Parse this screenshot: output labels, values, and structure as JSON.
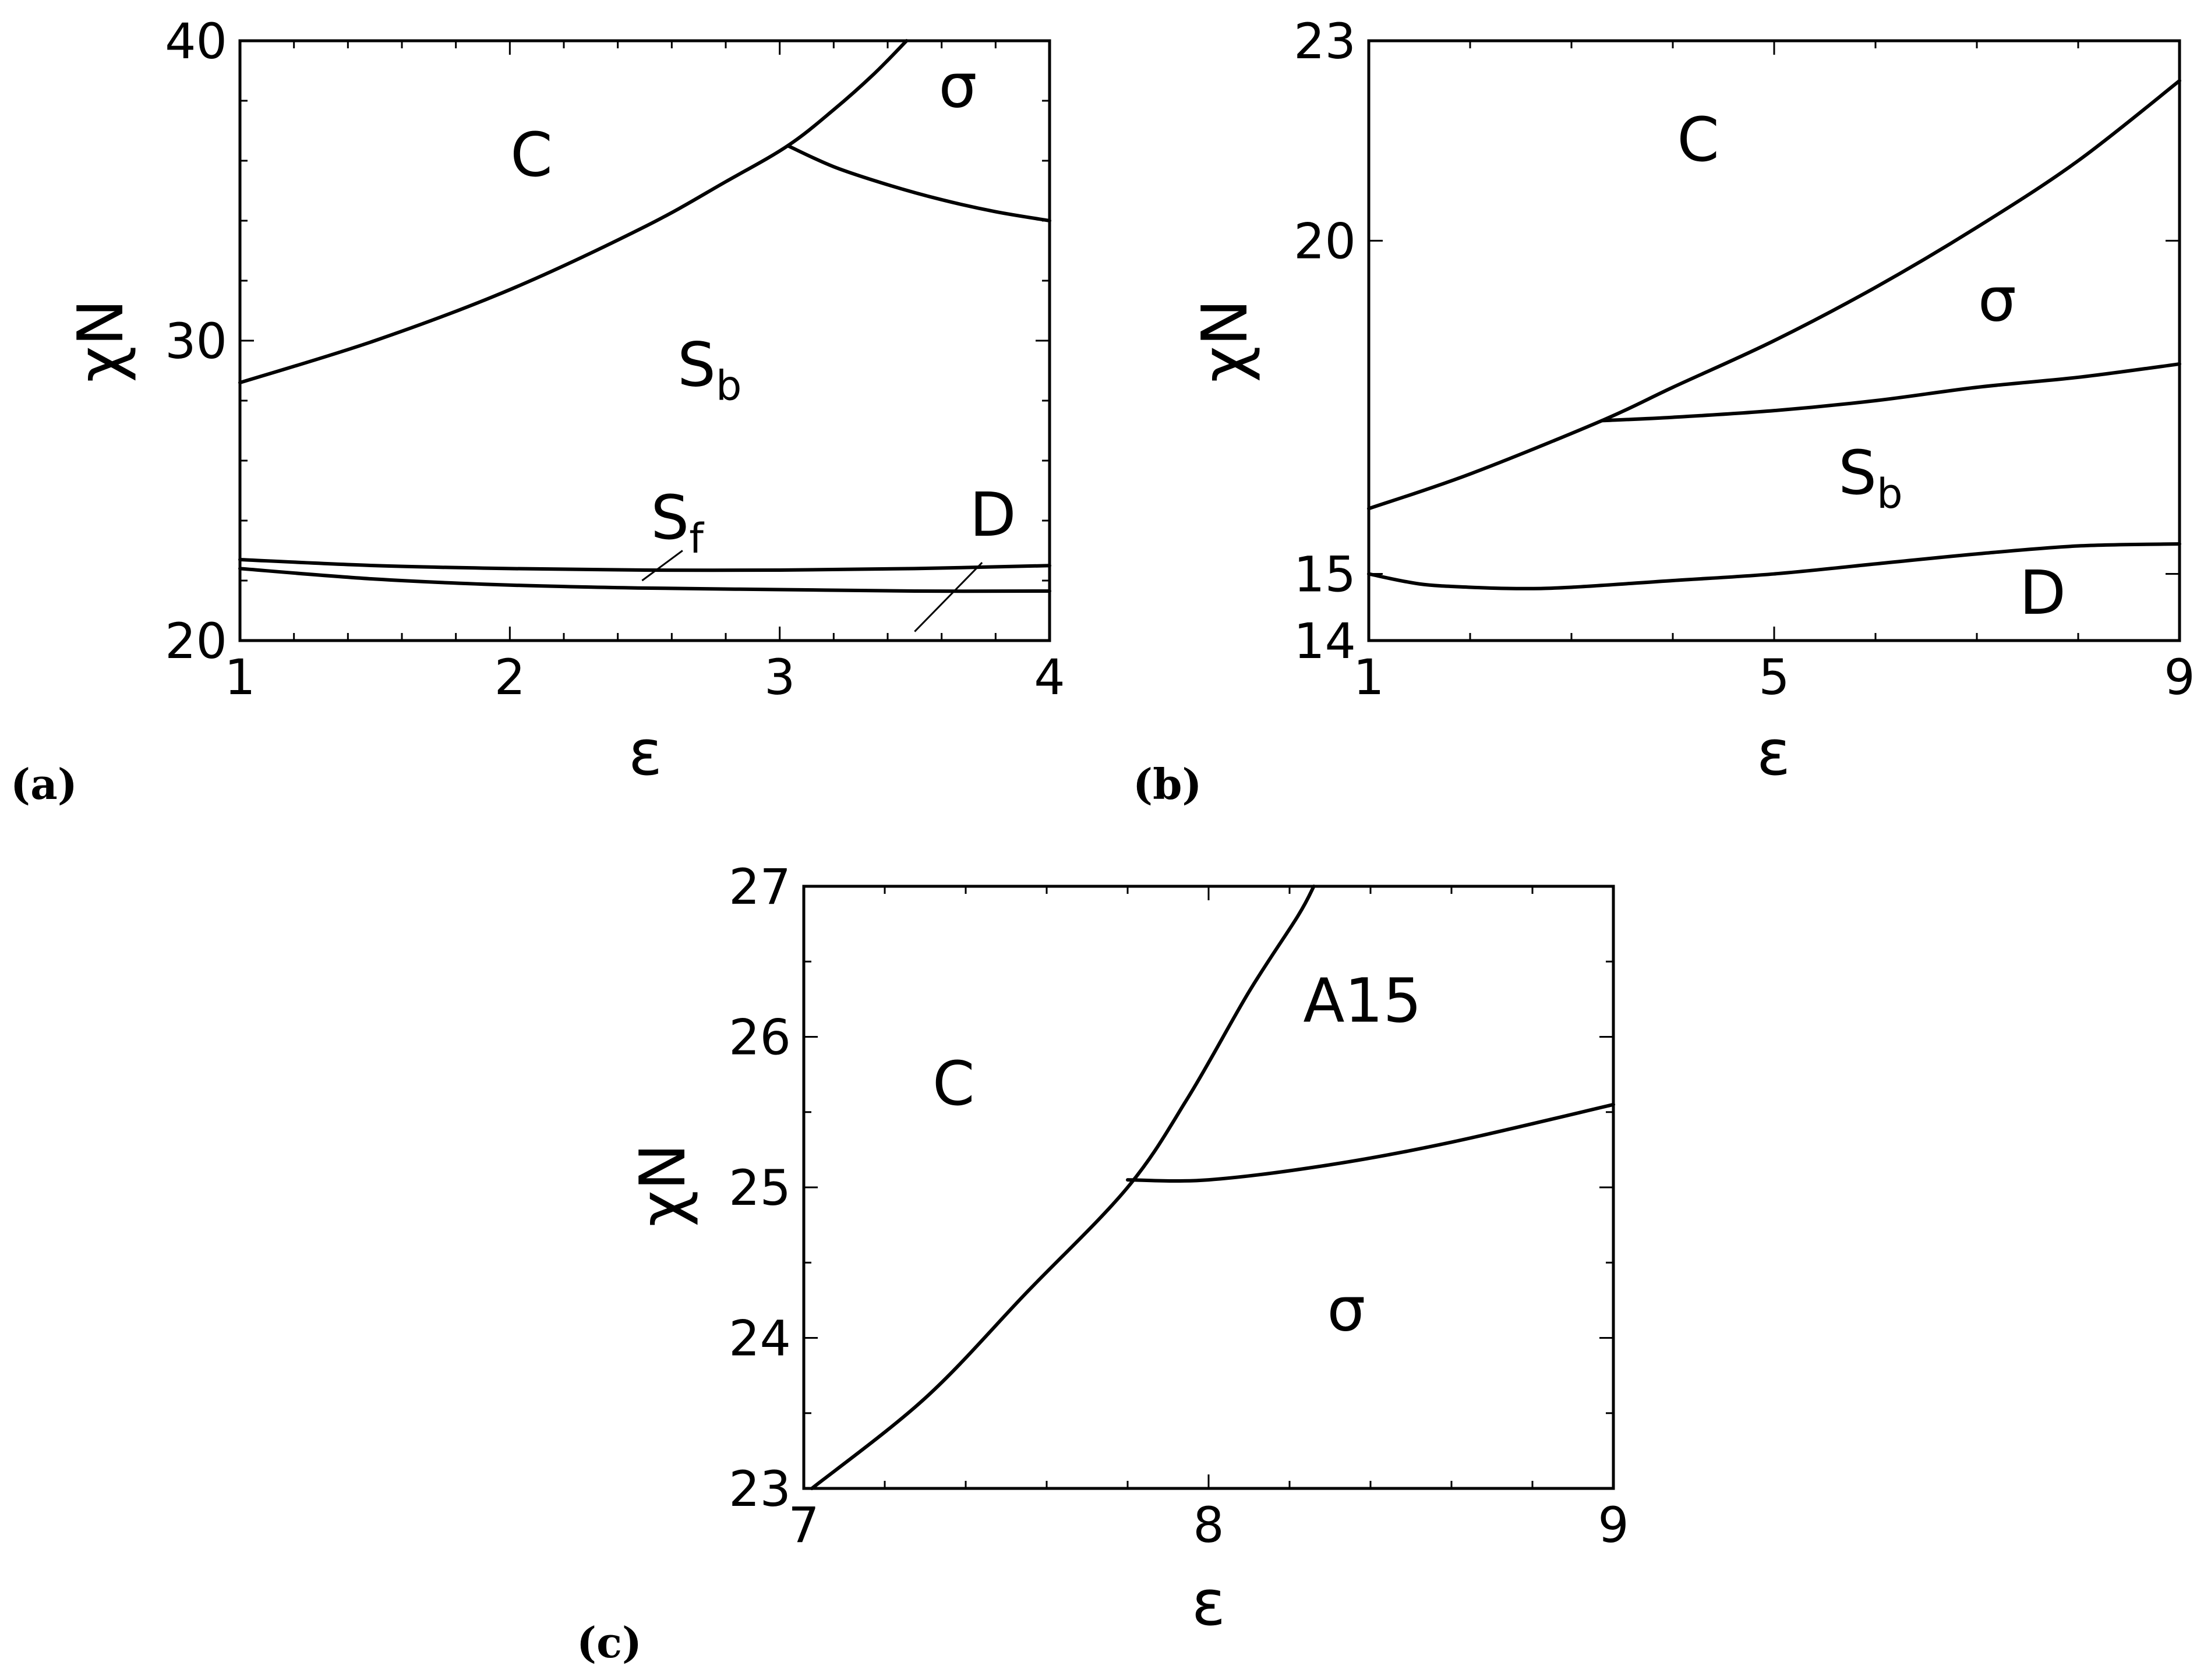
{
  "chart_data": [
    {
      "type": "line",
      "panel_label": "(a)",
      "xlabel": "ε",
      "ylabel": "χN",
      "xlim": [
        1,
        4
      ],
      "ylim": [
        20,
        40
      ],
      "xticks": [
        1,
        2,
        3,
        4
      ],
      "yticks": [
        20,
        30,
        40
      ],
      "xticklabels": [
        "1",
        "2",
        "3",
        "4"
      ],
      "yticklabels": [
        "20",
        "30",
        "40"
      ],
      "series": [
        {
          "x": [
            1,
            1.5,
            2,
            2.5,
            2.8,
            3.03,
            3.2,
            3.35,
            3.47
          ],
          "y": [
            28.6,
            30.0,
            31.7,
            33.8,
            35.3,
            36.5,
            37.7,
            38.9,
            40.0
          ]
        },
        {
          "x": [
            3.03,
            3.2,
            3.4,
            3.6,
            3.8,
            4.0
          ],
          "y": [
            36.5,
            35.8,
            35.2,
            34.7,
            34.3,
            34.0
          ]
        },
        {
          "x": [
            1,
            1.5,
            2,
            2.5,
            3,
            3.5,
            4
          ],
          "y": [
            22.7,
            22.5,
            22.4,
            22.35,
            22.35,
            22.4,
            22.5
          ]
        },
        {
          "x": [
            1,
            1.5,
            2,
            2.5,
            3,
            3.5,
            4
          ],
          "y": [
            22.4,
            22.05,
            21.85,
            21.75,
            21.7,
            21.65,
            21.65
          ]
        }
      ],
      "region_labels": [
        {
          "text": "C",
          "x": 2.08,
          "y": 35.5
        },
        {
          "text": "σ",
          "x": 3.66,
          "y": 37.8
        },
        {
          "text": "S",
          "sub": "b",
          "x": 2.74,
          "y": 28.5
        },
        {
          "text": "S",
          "sub": "f",
          "x": 2.62,
          "y": 23.4
        },
        {
          "text": "D",
          "x": 3.79,
          "y": 23.5
        }
      ],
      "leaders": [
        {
          "x1": 2.64,
          "y1": 23.0,
          "x2": 2.49,
          "y2": 22.0
        },
        {
          "x1": 3.75,
          "y1": 22.6,
          "x2": 3.5,
          "y2": 20.3
        }
      ]
    },
    {
      "type": "line",
      "panel_label": "(b)",
      "xlabel": "ε",
      "ylabel": "χN",
      "xlim": [
        1,
        9
      ],
      "ylim": [
        14,
        23
      ],
      "xticks": [
        1,
        5,
        9
      ],
      "yticks": [
        14,
        15,
        20,
        23
      ],
      "xticklabels": [
        "1",
        "5",
        "9"
      ],
      "yticklabels": [
        "14",
        "15",
        "20",
        "23"
      ],
      "series": [
        {
          "x": [
            1,
            2,
            3.3,
            4,
            5,
            6,
            7,
            8,
            9
          ],
          "y": [
            15.98,
            16.5,
            17.3,
            17.8,
            18.5,
            19.3,
            20.2,
            21.2,
            22.4
          ]
        },
        {
          "x": [
            3.3,
            4,
            5,
            6,
            7,
            8,
            9
          ],
          "y": [
            17.3,
            17.35,
            17.45,
            17.6,
            17.8,
            17.95,
            18.15
          ]
        },
        {
          "x": [
            1,
            1.5,
            2,
            2.5,
            3,
            4,
            5,
            6,
            7,
            8,
            9
          ],
          "y": [
            15.0,
            14.85,
            14.8,
            14.78,
            14.8,
            14.9,
            15.0,
            15.15,
            15.3,
            15.42,
            15.45
          ]
        }
      ],
      "region_labels": [
        {
          "text": "C",
          "x": 4.25,
          "y": 21.2
        },
        {
          "text": "σ",
          "x": 7.2,
          "y": 18.8
        },
        {
          "text": "S",
          "sub": "b",
          "x": 5.95,
          "y": 16.2
        },
        {
          "text": "D",
          "x": 7.65,
          "y": 14.4
        }
      ]
    },
    {
      "type": "line",
      "panel_label": "(c)",
      "xlabel": "ε",
      "ylabel": "χN",
      "xlim": [
        7,
        9
      ],
      "ylim": [
        23,
        27
      ],
      "xticks": [
        7,
        8,
        9
      ],
      "yticks": [
        23,
        24,
        25,
        26,
        27
      ],
      "xticklabels": [
        "7",
        "8",
        "9"
      ],
      "yticklabels": [
        "23",
        "24",
        "25",
        "26",
        "27"
      ],
      "series": [
        {
          "x": [
            7.02,
            7.3,
            7.55,
            7.8,
            7.95,
            8.1,
            8.22,
            8.26
          ],
          "y": [
            23.0,
            23.6,
            24.3,
            25.0,
            25.6,
            26.3,
            26.8,
            27.0
          ]
        },
        {
          "x": [
            7.8,
            8.0,
            8.3,
            8.6,
            9.0
          ],
          "y": [
            25.05,
            25.05,
            25.15,
            25.3,
            25.55
          ]
        }
      ],
      "region_labels": [
        {
          "text": "C",
          "x": 7.37,
          "y": 25.55
        },
        {
          "text": "A15",
          "x": 8.38,
          "y": 26.1
        },
        {
          "text": "σ",
          "x": 8.34,
          "y": 24.05
        }
      ]
    }
  ]
}
